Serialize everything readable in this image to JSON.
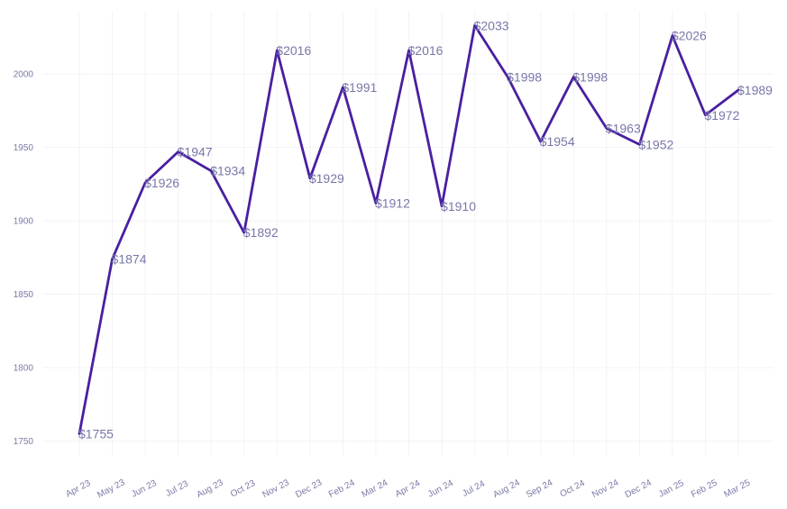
{
  "chart_data": {
    "type": "line",
    "title": "",
    "xlabel": "",
    "ylabel": "",
    "categories": [
      "Apr 23",
      "May 23",
      "Jun 23",
      "Jul 23",
      "Aug 23",
      "Oct 23",
      "Nov 23",
      "Dec 23",
      "Feb 24",
      "Mar 24",
      "Apr 24",
      "Jun 24",
      "Jul 24",
      "Aug 24",
      "Sep 24",
      "Oct 24",
      "Nov 24",
      "Dec 24",
      "Jan 25",
      "Feb 25",
      "Mar 25"
    ],
    "series": [
      {
        "values": [
          1755,
          1874,
          1926,
          1947,
          1934,
          1892,
          2016,
          1929,
          1991,
          1912,
          2016,
          1910,
          2033,
          1998,
          1954,
          1998,
          1963,
          1952,
          2026,
          1972,
          1989
        ],
        "labels": [
          "$1755",
          "$1874",
          "$1926",
          "$1947",
          "$1934",
          "$1892",
          "$2016",
          "$1929",
          "$1991",
          "$1912",
          "$2016",
          "$1910",
          "$2033",
          "$1998",
          "$1954",
          "$1998",
          "$1963",
          "$1952",
          "$2026",
          "$1972",
          "$1989"
        ]
      }
    ],
    "y_ticks": [
      1750,
      1800,
      1850,
      1900,
      1950,
      2000
    ],
    "ylim": [
      1740,
      2043
    ],
    "grid": true,
    "colors": {
      "line": "#4a1fa0",
      "grid": "#f3f3f8",
      "text": "#7a7aa8"
    }
  }
}
